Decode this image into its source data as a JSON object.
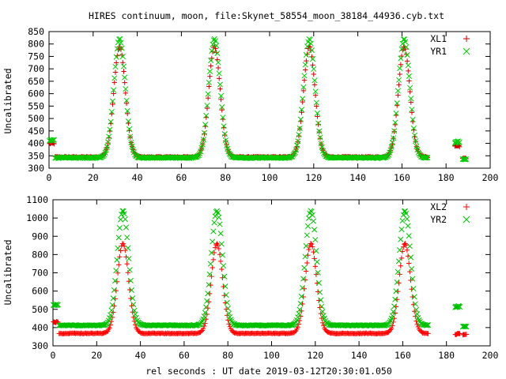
{
  "title": "HIRES continuum, moon, file:Skynet_58554_moon_38184_44936.cyb.txt",
  "xlabel": "rel seconds : UT date 2019-03-12T20:30:01.050",
  "chart_data": [
    {
      "type": "scatter",
      "ylabel": "Uncalibrated",
      "xlim": [
        0,
        200
      ],
      "ylim": [
        300,
        850
      ],
      "xticks": [
        0,
        20,
        40,
        60,
        80,
        100,
        120,
        140,
        160,
        180,
        200
      ],
      "yticks": [
        300,
        350,
        400,
        450,
        500,
        550,
        600,
        650,
        700,
        750,
        800,
        850
      ],
      "grid": false,
      "legend_position": "top-right",
      "series": [
        {
          "name": "XL1",
          "marker": "plus",
          "color": "#cc0000",
          "baseline": 345,
          "peak": 790,
          "peak_x": [
            32,
            75,
            118,
            161
          ],
          "start_level": 400,
          "end_level": 390,
          "x": [
            0,
            2,
            3,
            20,
            32,
            45,
            75,
            88,
            118,
            131,
            161,
            172,
            184,
            185,
            186,
            188,
            189
          ],
          "y": [
            400,
            400,
            345,
            345,
            790,
            345,
            790,
            345,
            790,
            345,
            790,
            340,
            390,
            390,
            400,
            340,
            338
          ]
        },
        {
          "name": "YR1",
          "marker": "x",
          "color": "#00cc00",
          "baseline": 342,
          "peak": 820,
          "peak_x": [
            32,
            75,
            118,
            161
          ],
          "start_level": 412,
          "end_level": 405,
          "x": [
            0,
            2,
            3,
            20,
            32,
            45,
            75,
            88,
            118,
            131,
            161,
            172,
            184,
            185,
            186,
            188,
            189
          ],
          "y": [
            412,
            412,
            342,
            342,
            820,
            342,
            820,
            342,
            820,
            342,
            820,
            338,
            405,
            405,
            405,
            338,
            336
          ]
        }
      ]
    },
    {
      "type": "scatter",
      "ylabel": "Uncalibrated",
      "xlim": [
        0,
        200
      ],
      "ylim": [
        300,
        1100
      ],
      "xticks": [
        0,
        20,
        40,
        60,
        80,
        100,
        120,
        140,
        160,
        180,
        200
      ],
      "yticks": [
        300,
        400,
        500,
        600,
        700,
        800,
        900,
        1000,
        1100
      ],
      "grid": false,
      "legend_position": "top-right",
      "series": [
        {
          "name": "XL2",
          "marker": "plus",
          "color": "#ff0000",
          "baseline": 368,
          "peak": 860,
          "peak_x": [
            32,
            75,
            118,
            161
          ],
          "start_level": 430,
          "end_level": 365,
          "x": [
            0,
            2,
            3,
            20,
            32,
            45,
            75,
            88,
            118,
            131,
            161,
            172,
            184,
            185,
            186,
            188,
            189
          ],
          "y": [
            430,
            430,
            372,
            372,
            860,
            368,
            860,
            368,
            860,
            368,
            860,
            362,
            365,
            365,
            365,
            362,
            362
          ]
        },
        {
          "name": "YR2",
          "marker": "x",
          "color": "#00c000",
          "baseline": 412,
          "peak": 1040,
          "peak_x": [
            32,
            75,
            118,
            161
          ],
          "start_level": 525,
          "end_level": 515,
          "x": [
            0,
            2,
            3,
            20,
            32,
            45,
            75,
            88,
            118,
            131,
            161,
            172,
            184,
            185,
            186,
            188,
            189
          ],
          "y": [
            525,
            525,
            415,
            412,
            1040,
            410,
            1040,
            410,
            1040,
            410,
            1040,
            405,
            515,
            515,
            515,
            405,
            402
          ]
        }
      ]
    }
  ]
}
